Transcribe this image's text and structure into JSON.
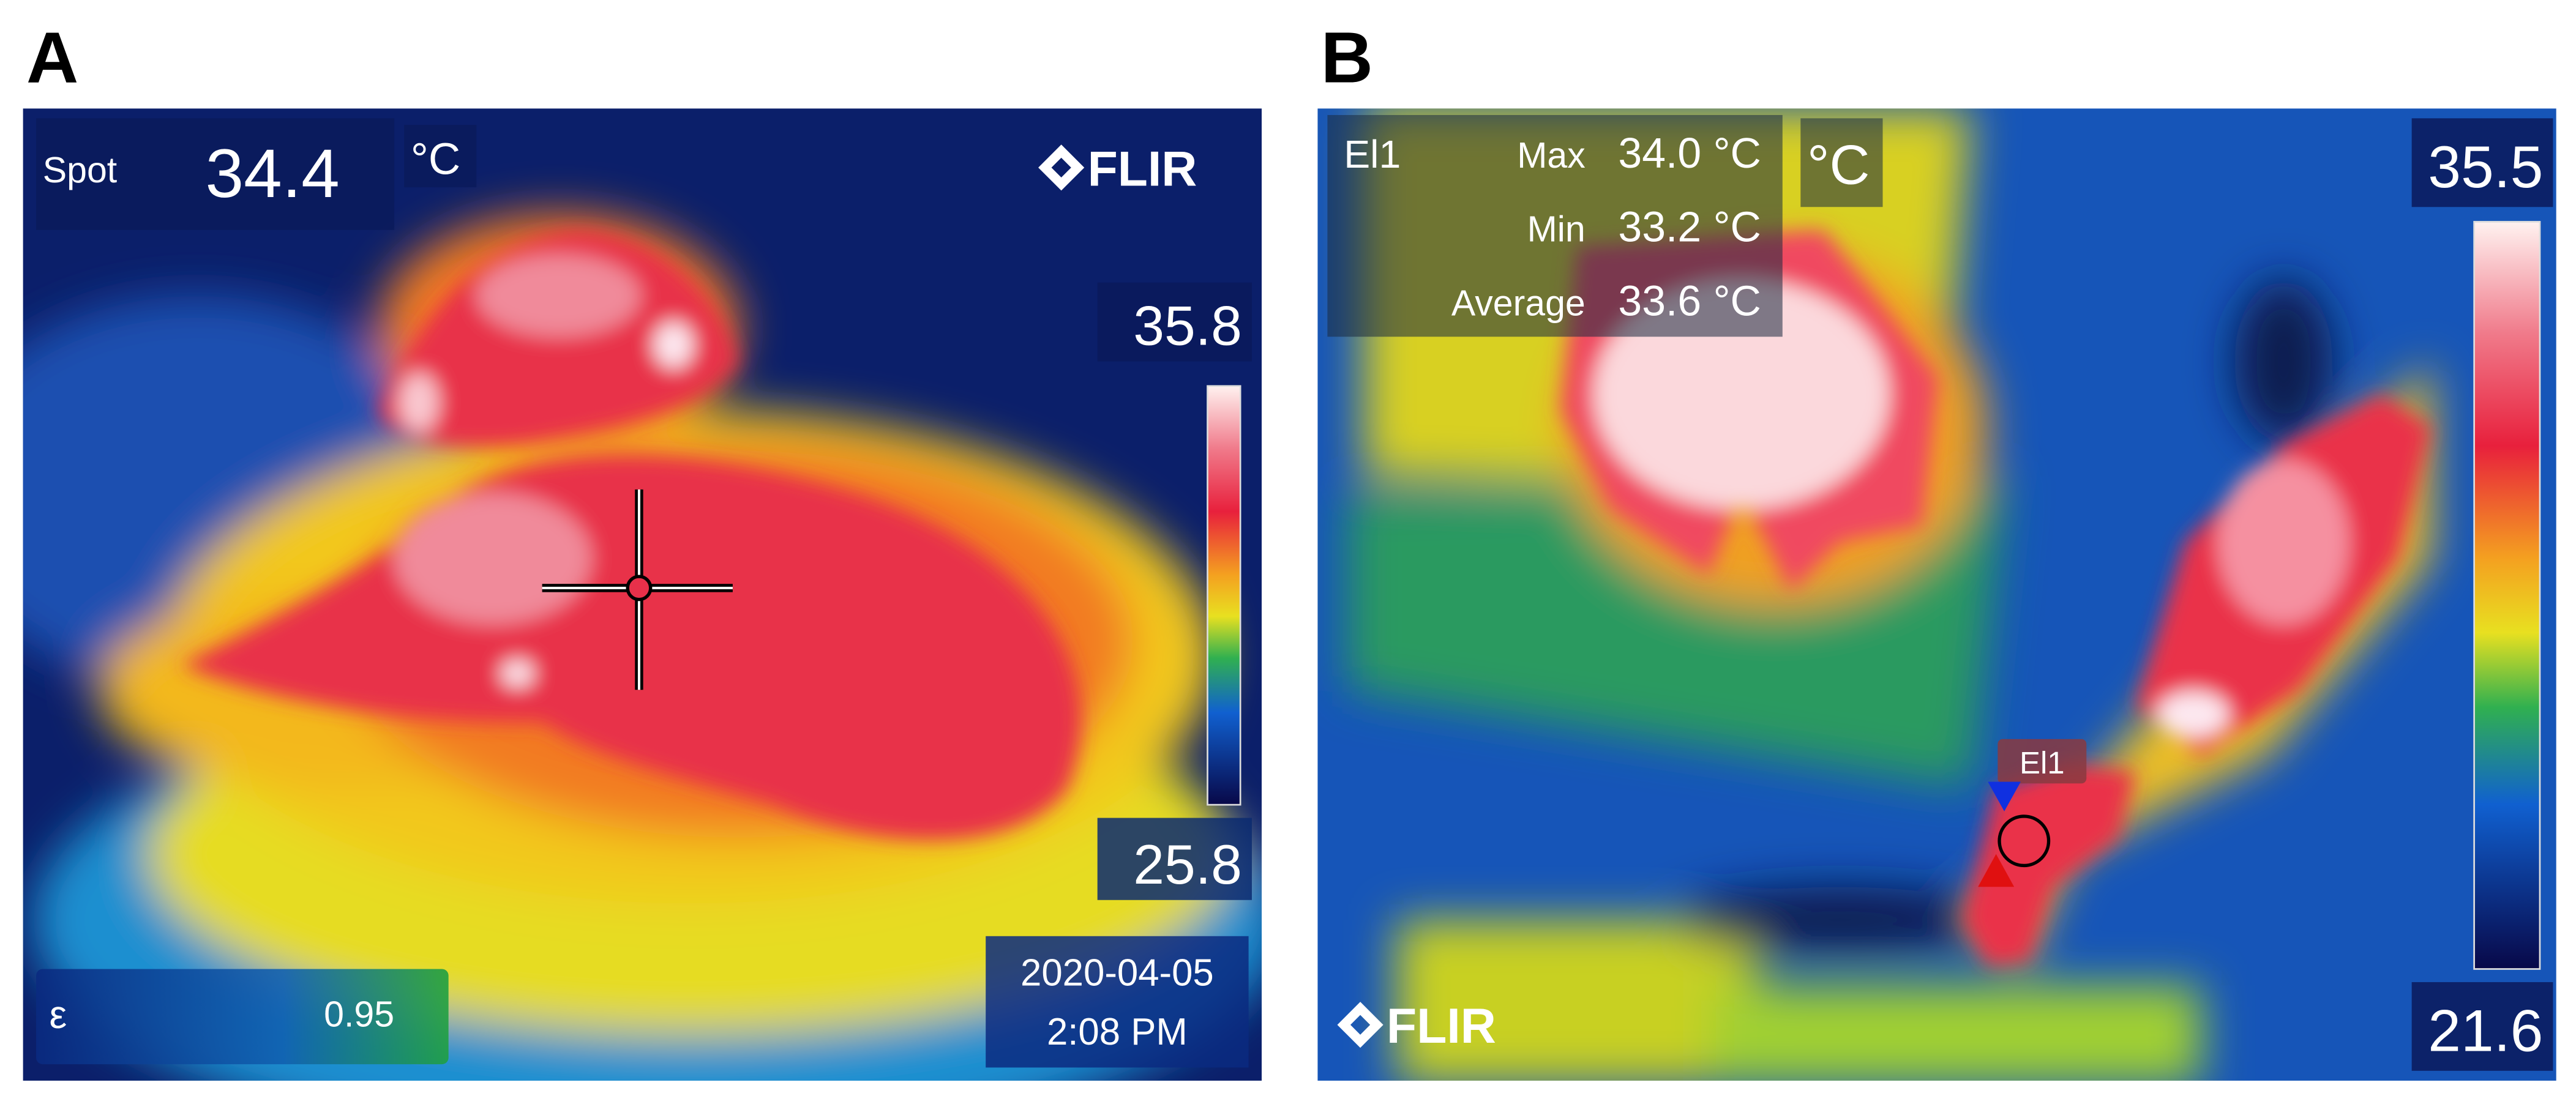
{
  "panels": [
    {
      "label": "A",
      "spot_label": "Spot",
      "spot_value": "34.4",
      "unit": "°C",
      "brand": "FLIR",
      "scale_max": "35.8",
      "scale_min": "25.8",
      "emissivity_label": "ε",
      "emissivity": "0.95",
      "date": "2020-04-05",
      "time": "2:08 PM"
    },
    {
      "label": "B",
      "measure_name": "El1",
      "stats": [
        {
          "label": "Max",
          "value": "34.0 °C"
        },
        {
          "label": "Min",
          "value": "33.2 °C"
        },
        {
          "label": "Average",
          "value": "33.6 °C"
        }
      ],
      "unit": "°C",
      "brand": "FLIR",
      "scale_max": "35.5",
      "scale_min": "21.6",
      "marker_label": "El1"
    }
  ]
}
